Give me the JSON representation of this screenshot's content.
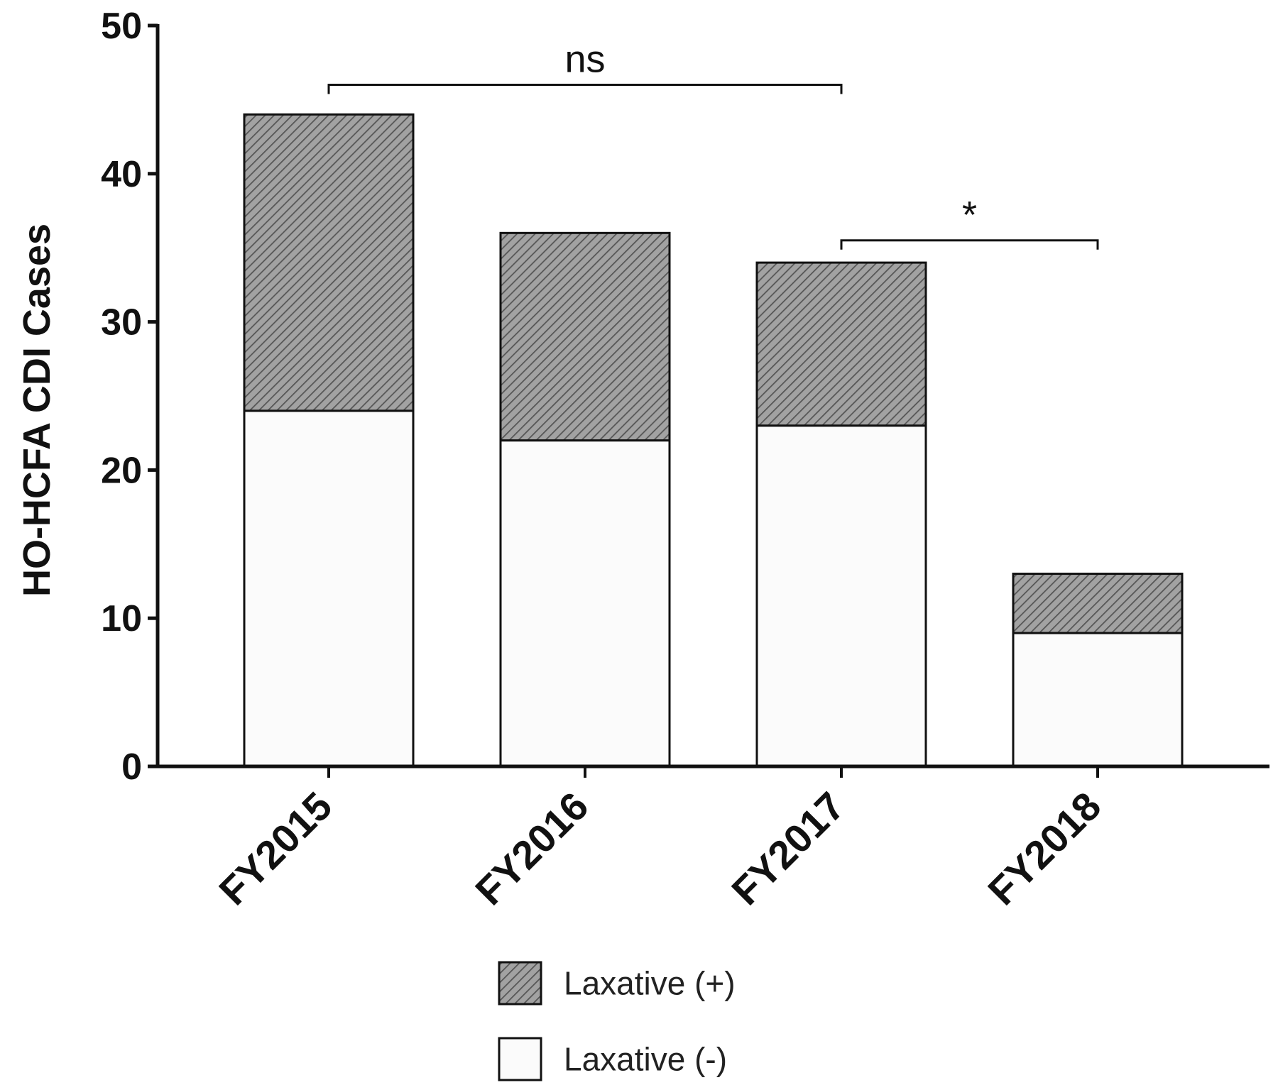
{
  "chart_data": {
    "type": "bar",
    "stacked": true,
    "title": "",
    "xlabel": "",
    "ylabel": "HO-HCFA CDI Cases",
    "ylim": [
      0,
      50
    ],
    "yticks": [
      0,
      10,
      20,
      30,
      40,
      50
    ],
    "categories": [
      "FY2015",
      "FY2016",
      "FY2017",
      "FY2018"
    ],
    "series": [
      {
        "name": "Laxative (-)",
        "values": [
          24,
          22,
          23,
          9
        ],
        "color": "#fbfbfb",
        "pattern": "none"
      },
      {
        "name": "Laxative (+)",
        "values": [
          20,
          14,
          11,
          4
        ],
        "color": "#9a9a9a",
        "pattern": "hatched"
      }
    ],
    "annotations": [
      {
        "label": "ns",
        "from": "FY2015",
        "to": "FY2017",
        "y": 46
      },
      {
        "label": "*",
        "from": "FY2017",
        "to": "FY2018",
        "y": 35.5
      }
    ],
    "legend": {
      "placement": "bottom-center",
      "order": [
        "Laxative (+)",
        "Laxative (-)"
      ]
    },
    "grid": false
  }
}
